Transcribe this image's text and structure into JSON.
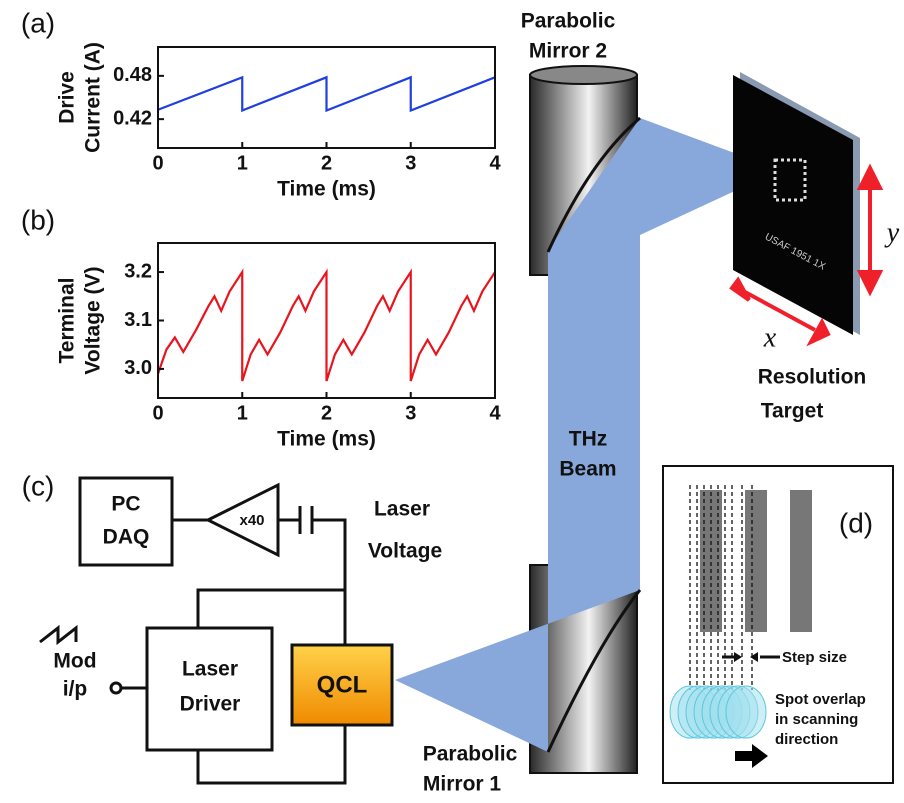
{
  "chart_data": [
    {
      "type": "line",
      "panel_label": "(a)",
      "ylabel": [
        "Drive",
        "Current (A)"
      ],
      "xlabel": "Time (ms)",
      "x": [
        0,
        1,
        1,
        2,
        2,
        3,
        3,
        4
      ],
      "series": [
        {
          "color": "#1f3fe0",
          "values": [
            0.433,
            0.478,
            0.432,
            0.478,
            0.432,
            0.478,
            0.432,
            0.478
          ]
        }
      ],
      "xlim": [
        0,
        4
      ],
      "ylim": [
        0.38,
        0.52
      ],
      "xticks": [
        0,
        1,
        2,
        3,
        4
      ],
      "yticks": [
        0.42,
        0.48
      ]
    },
    {
      "type": "line",
      "panel_label": "(b)",
      "ylabel": [
        "Terminal",
        "Voltage (V)"
      ],
      "xlabel": "Time (ms)",
      "x": [
        0,
        0.1,
        0.2,
        0.3,
        0.45,
        0.6,
        0.67,
        0.75,
        0.85,
        1,
        1,
        1.1,
        1.2,
        1.3,
        1.45,
        1.6,
        1.67,
        1.75,
        1.85,
        2,
        2,
        2.1,
        2.2,
        2.3,
        2.45,
        2.6,
        2.67,
        2.75,
        2.85,
        3,
        3,
        3.1,
        3.2,
        3.3,
        3.45,
        3.6,
        3.67,
        3.75,
        3.85,
        4
      ],
      "series": [
        {
          "color": "#e8141e",
          "values": [
            2.99,
            3.04,
            3.065,
            3.035,
            3.08,
            3.13,
            3.15,
            3.12,
            3.16,
            3.2,
            2.975,
            3.03,
            3.06,
            3.03,
            3.075,
            3.13,
            3.15,
            3.12,
            3.16,
            3.2,
            2.975,
            3.03,
            3.06,
            3.03,
            3.075,
            3.13,
            3.15,
            3.12,
            3.16,
            3.2,
            2.975,
            3.03,
            3.06,
            3.03,
            3.075,
            3.13,
            3.15,
            3.12,
            3.16,
            3.2
          ]
        }
      ],
      "xlim": [
        0,
        4
      ],
      "ylim": [
        2.94,
        3.26
      ],
      "xticks": [
        0,
        1,
        2,
        3,
        4
      ],
      "yticks": [
        {
          "value": 3,
          "label": "3.0"
        },
        3.1,
        3.2
      ]
    }
  ],
  "diagram": {
    "mirror2": [
      "Parabolic",
      "Mirror 2"
    ],
    "mirror1": [
      "Parabolic",
      "Mirror 1"
    ],
    "beam": [
      "THz",
      "Beam"
    ],
    "target_text": "USAF 1951 1X",
    "axis_x": "x",
    "axis_y": "y",
    "target": [
      "Resolution",
      "Target"
    ],
    "panel_c": "(c)",
    "pc": [
      "PC",
      "DAQ"
    ],
    "amp": "x40",
    "laser_voltage": [
      "Laser",
      "Voltage"
    ],
    "driver": [
      "Laser",
      "Driver"
    ],
    "qcl": "QCL",
    "mod": [
      "Mod",
      "i/p"
    ],
    "panel_d": "(d)",
    "step": "Step size",
    "spot": [
      "Spot overlap",
      "in scanning",
      "direction"
    ]
  }
}
